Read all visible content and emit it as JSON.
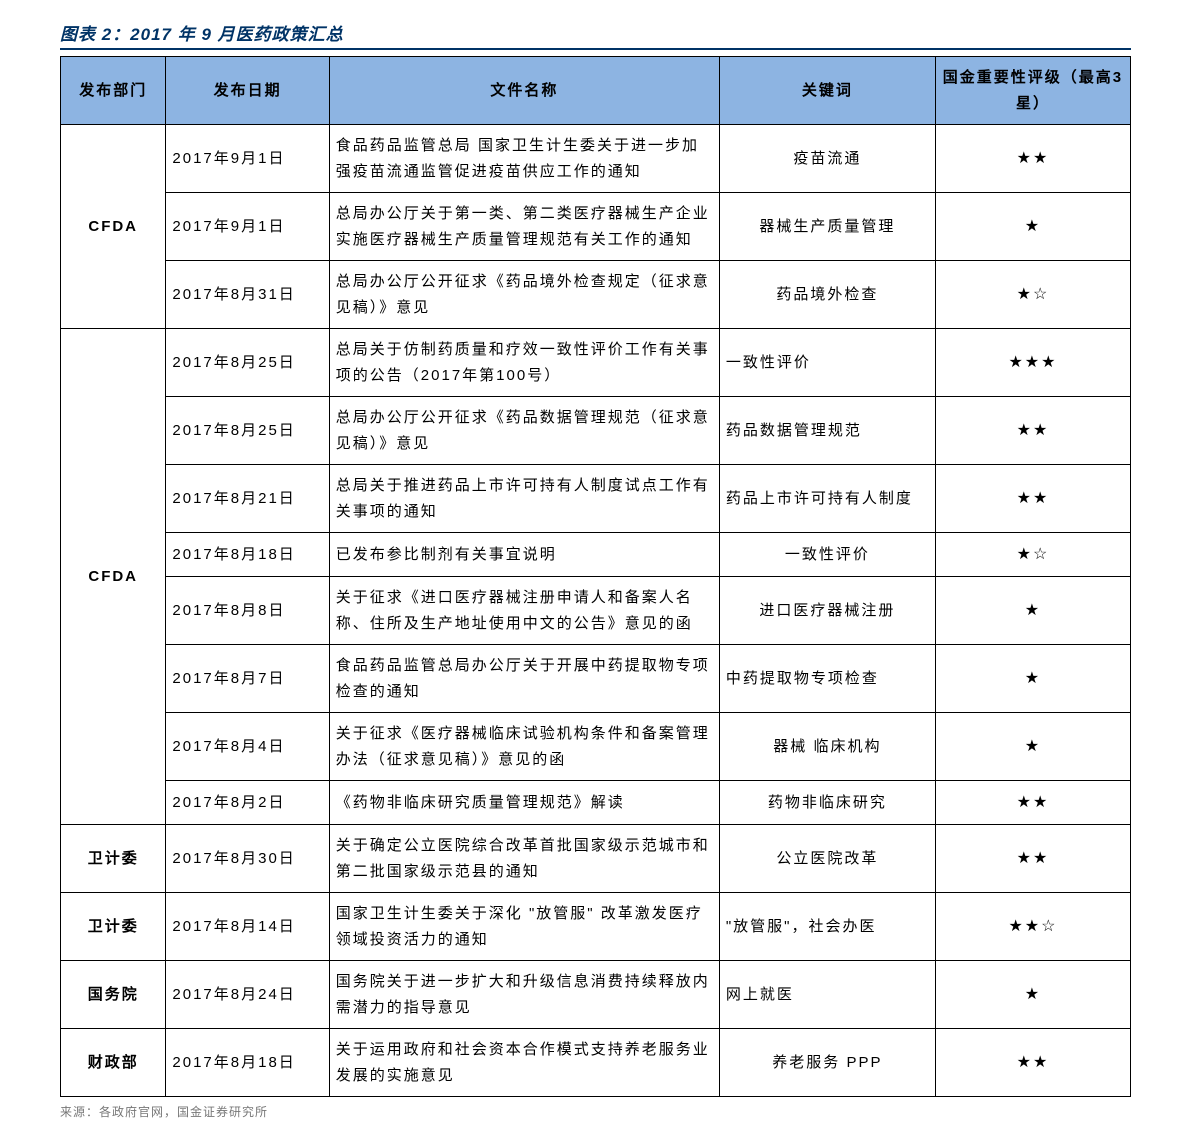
{
  "title": "图表 2：2017 年 9 月医药政策汇总",
  "columns": [
    "发布部门",
    "发布日期",
    "文件名称",
    "关键词",
    "国金重要性评级（最高3星）"
  ],
  "groups": [
    {
      "dept": "CFDA",
      "rows": [
        {
          "date": "2017年9月1日",
          "doc": "食品药品监管总局 国家卫生计生委关于进一步加强疫苗流通监管促进疫苗供应工作的通知",
          "keyword": "疫苗流通",
          "rating": "★★",
          "kw_align": "center"
        },
        {
          "date": "2017年9月1日",
          "doc": "总局办公厅关于第一类、第二类医疗器械生产企业实施医疗器械生产质量管理规范有关工作的通知",
          "keyword": "器械生产质量管理",
          "rating": "★",
          "kw_align": "center"
        },
        {
          "date": "2017年8月31日",
          "doc": "总局办公厅公开征求《药品境外检查规定（征求意见稿）》意见",
          "keyword": "药品境外检查",
          "rating": "★☆",
          "kw_align": "center"
        }
      ]
    },
    {
      "dept": "CFDA",
      "rows": [
        {
          "date": "2017年8月25日",
          "doc": "总局关于仿制药质量和疗效一致性评价工作有关事项的公告（2017年第100号）",
          "keyword": "一致性评价",
          "rating": "★★★",
          "kw_align": "left"
        },
        {
          "date": "2017年8月25日",
          "doc": "总局办公厅公开征求《药品数据管理规范（征求意见稿）》意见",
          "keyword": "药品数据管理规范",
          "rating": "★★",
          "kw_align": "left"
        },
        {
          "date": "2017年8月21日",
          "doc": "总局关于推进药品上市许可持有人制度试点工作有关事项的通知",
          "keyword": "药品上市许可持有人制度",
          "rating": "★★",
          "kw_align": "left"
        },
        {
          "date": "2017年8月18日",
          "doc": "已发布参比制剂有关事宜说明",
          "keyword": "一致性评价",
          "rating": "★☆",
          "kw_align": "center"
        },
        {
          "date": "2017年8月8日",
          "doc": "关于征求《进口医疗器械注册申请人和备案人名称、住所及生产地址使用中文的公告》意见的函",
          "keyword": "进口医疗器械注册",
          "rating": "★",
          "kw_align": "center"
        },
        {
          "date": "2017年8月7日",
          "doc": "食品药品监管总局办公厅关于开展中药提取物专项检查的通知",
          "keyword": "中药提取物专项检查",
          "rating": "★",
          "kw_align": "left"
        },
        {
          "date": "2017年8月4日",
          "doc": "关于征求《医疗器械临床试验机构条件和备案管理办法（征求意见稿）》意见的函",
          "keyword": "器械 临床机构",
          "rating": "★",
          "kw_align": "center"
        },
        {
          "date": "2017年8月2日",
          "doc": "《药物非临床研究质量管理规范》解读",
          "keyword": "药物非临床研究",
          "rating": "★★",
          "kw_align": "center"
        }
      ]
    },
    {
      "dept": "卫计委",
      "rows": [
        {
          "date": "2017年8月30日",
          "doc": "关于确定公立医院综合改革首批国家级示范城市和第二批国家级示范县的通知",
          "keyword": "公立医院改革",
          "rating": "★★",
          "kw_align": "center"
        }
      ]
    },
    {
      "dept": "卫计委",
      "rows": [
        {
          "date": "2017年8月14日",
          "doc": "国家卫生计生委关于深化 \"放管服\" 改革激发医疗领域投资活力的通知",
          "keyword": "\"放管服\"，社会办医",
          "rating": "★★☆",
          "kw_align": "left"
        }
      ]
    },
    {
      "dept": "国务院",
      "rows": [
        {
          "date": "2017年8月24日",
          "doc": "国务院关于进一步扩大和升级信息消费持续释放内需潜力的指导意见",
          "keyword": "网上就医",
          "rating": "★",
          "kw_align": "left"
        }
      ]
    },
    {
      "dept": "财政部",
      "rows": [
        {
          "date": "2017年8月18日",
          "doc": "关于运用政府和社会资本合作模式支持养老服务业发展的实施意见",
          "keyword": "养老服务 PPP",
          "rating": "★★",
          "kw_align": "center"
        }
      ]
    }
  ],
  "source": "来源：各政府官网，国金证券研究所",
  "colors": {
    "header_bg": "#8DB4E2",
    "title_color": "#003366",
    "border_color": "#000000",
    "background": "#ffffff"
  }
}
